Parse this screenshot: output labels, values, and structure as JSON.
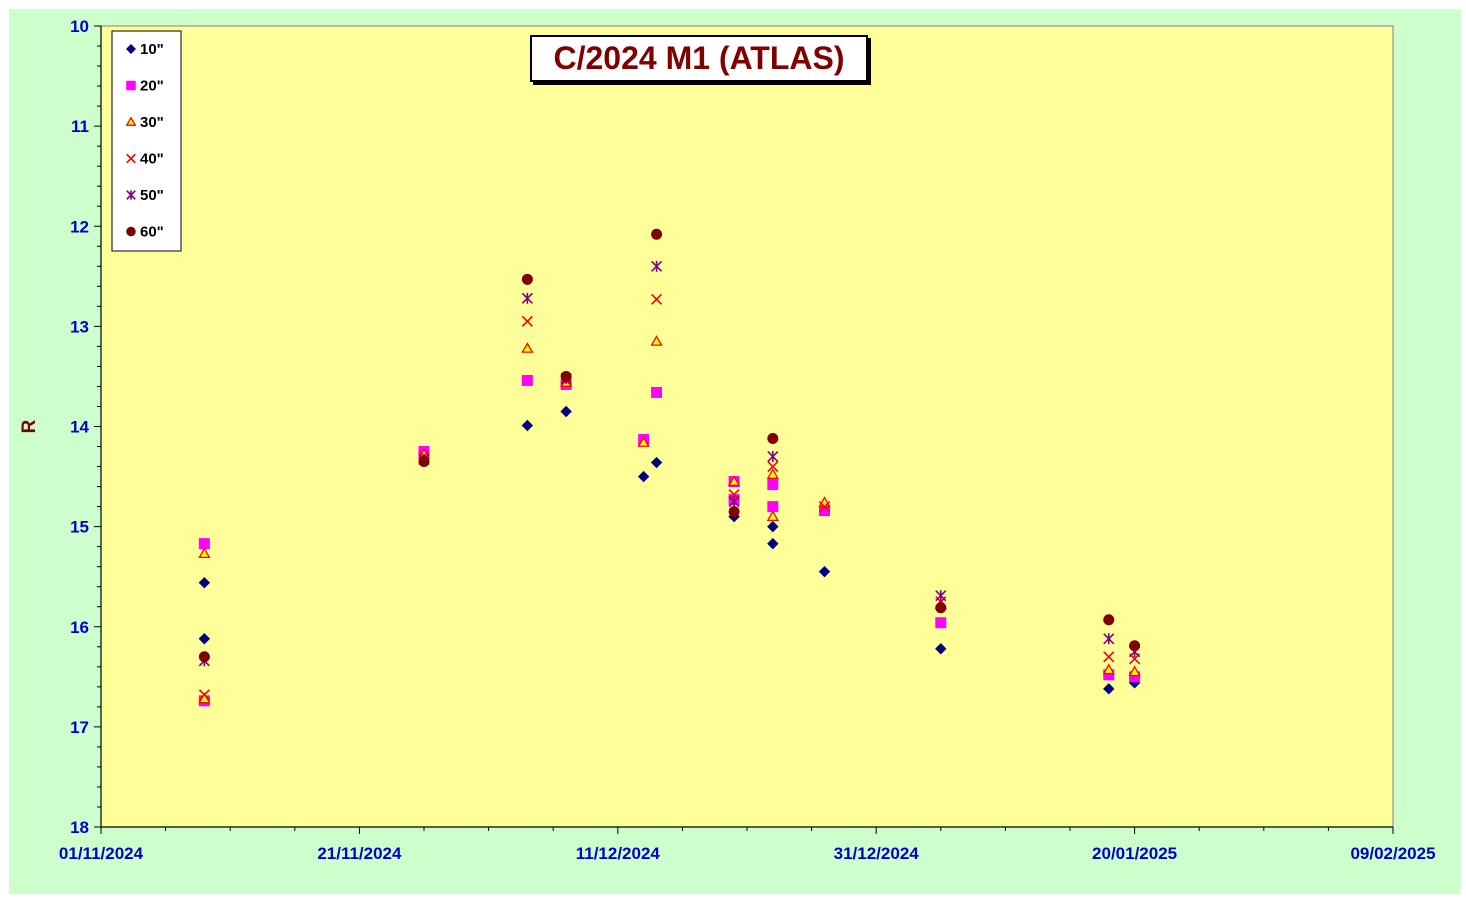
{
  "chart_data": {
    "type": "scatter",
    "title": "C/2024 M1 (ATLAS)",
    "ylabel": "R",
    "xlabel": "",
    "y_inverted": true,
    "ylim": [
      10,
      18
    ],
    "xlim": [
      "01/11/2024",
      "09/02/2025"
    ],
    "x_tick_labels": [
      "01/11/2024",
      "21/11/2024",
      "11/12/2024",
      "31/12/2024",
      "20/01/2025",
      "09/02/2025"
    ],
    "y_tick_labels": [
      "10",
      "11",
      "12",
      "13",
      "14",
      "15",
      "16",
      "17",
      "18"
    ],
    "legend_position": "top-left",
    "grid": false,
    "plot_background": "#ffff99",
    "chart_background": "#ccffcc",
    "series": [
      {
        "name": "10\"",
        "marker": "diamond",
        "color": "#000080",
        "points": [
          {
            "x": "09/11/2024",
            "y": 15.56
          },
          {
            "x": "09/11/2024",
            "y": 16.12
          },
          {
            "x": "26/11/2024",
            "y": 14.3
          },
          {
            "x": "04/12/2024",
            "y": 13.99
          },
          {
            "x": "07/12/2024",
            "y": 13.85
          },
          {
            "x": "13/12/2024",
            "y": 14.5
          },
          {
            "x": "14/12/2024",
            "y": 14.36
          },
          {
            "x": "20/12/2024",
            "y": 14.9
          },
          {
            "x": "23/12/2024",
            "y": 15.0
          },
          {
            "x": "23/12/2024",
            "y": 15.17
          },
          {
            "x": "27/12/2024",
            "y": 15.45
          },
          {
            "x": "05/01/2025",
            "y": 16.22
          },
          {
            "x": "18/01/2025",
            "y": 16.62
          },
          {
            "x": "20/01/2025",
            "y": 16.56
          }
        ]
      },
      {
        "name": "20\"",
        "marker": "square",
        "color": "#ff00ff",
        "points": [
          {
            "x": "09/11/2024",
            "y": 15.17
          },
          {
            "x": "09/11/2024",
            "y": 16.74
          },
          {
            "x": "26/11/2024",
            "y": 14.25
          },
          {
            "x": "04/12/2024",
            "y": 13.54
          },
          {
            "x": "07/12/2024",
            "y": 13.58
          },
          {
            "x": "13/12/2024",
            "y": 14.13
          },
          {
            "x": "14/12/2024",
            "y": 13.66
          },
          {
            "x": "20/12/2024",
            "y": 14.55
          },
          {
            "x": "20/12/2024",
            "y": 14.73
          },
          {
            "x": "23/12/2024",
            "y": 14.58
          },
          {
            "x": "23/12/2024",
            "y": 14.8
          },
          {
            "x": "27/12/2024",
            "y": 14.84
          },
          {
            "x": "05/01/2025",
            "y": 15.96
          },
          {
            "x": "18/01/2025",
            "y": 16.48
          },
          {
            "x": "20/01/2025",
            "y": 16.5
          }
        ]
      },
      {
        "name": "30\"",
        "marker": "triangle",
        "color": "#ff0000",
        "fill": "#ffff00",
        "points": [
          {
            "x": "09/11/2024",
            "y": 15.27
          },
          {
            "x": "09/11/2024",
            "y": 16.72
          },
          {
            "x": "26/11/2024",
            "y": 14.28
          },
          {
            "x": "04/12/2024",
            "y": 13.22
          },
          {
            "x": "07/12/2024",
            "y": 13.56
          },
          {
            "x": "13/12/2024",
            "y": 14.16
          },
          {
            "x": "14/12/2024",
            "y": 13.15
          },
          {
            "x": "20/12/2024",
            "y": 14.55
          },
          {
            "x": "23/12/2024",
            "y": 14.48
          },
          {
            "x": "23/12/2024",
            "y": 14.9
          },
          {
            "x": "27/12/2024",
            "y": 14.76
          },
          {
            "x": "05/01/2025",
            "y": 15.78
          },
          {
            "x": "18/01/2025",
            "y": 16.43
          },
          {
            "x": "20/01/2025",
            "y": 16.45
          }
        ]
      },
      {
        "name": "40\"",
        "marker": "x",
        "color": "#ff0000",
        "points": [
          {
            "x": "09/11/2024",
            "y": 16.68
          },
          {
            "x": "26/11/2024",
            "y": 14.3
          },
          {
            "x": "04/12/2024",
            "y": 12.95
          },
          {
            "x": "07/12/2024",
            "y": 13.54
          },
          {
            "x": "14/12/2024",
            "y": 12.73
          },
          {
            "x": "20/12/2024",
            "y": 14.68
          },
          {
            "x": "23/12/2024",
            "y": 14.4
          },
          {
            "x": "27/12/2024",
            "y": 14.8
          },
          {
            "x": "05/01/2025",
            "y": 15.75
          },
          {
            "x": "18/01/2025",
            "y": 16.3
          },
          {
            "x": "20/01/2025",
            "y": 16.32
          }
        ]
      },
      {
        "name": "50\"",
        "marker": "star",
        "color": "#800080",
        "points": [
          {
            "x": "09/11/2024",
            "y": 16.34
          },
          {
            "x": "26/11/2024",
            "y": 14.33
          },
          {
            "x": "04/12/2024",
            "y": 12.72
          },
          {
            "x": "07/12/2024",
            "y": 13.52
          },
          {
            "x": "14/12/2024",
            "y": 12.4
          },
          {
            "x": "20/12/2024",
            "y": 14.75
          },
          {
            "x": "23/12/2024",
            "y": 14.3
          },
          {
            "x": "05/01/2025",
            "y": 15.69
          },
          {
            "x": "18/01/2025",
            "y": 16.12
          },
          {
            "x": "20/01/2025",
            "y": 16.25
          }
        ]
      },
      {
        "name": "60\"",
        "marker": "circle",
        "color": "#800000",
        "points": [
          {
            "x": "09/11/2024",
            "y": 16.3
          },
          {
            "x": "26/11/2024",
            "y": 14.35
          },
          {
            "x": "04/12/2024",
            "y": 12.53
          },
          {
            "x": "07/12/2024",
            "y": 13.5
          },
          {
            "x": "14/12/2024",
            "y": 12.08
          },
          {
            "x": "20/12/2024",
            "y": 14.85
          },
          {
            "x": "23/12/2024",
            "y": 14.12
          },
          {
            "x": "05/01/2025",
            "y": 15.81
          },
          {
            "x": "18/01/2025",
            "y": 15.93
          },
          {
            "x": "20/01/2025",
            "y": 16.19
          }
        ]
      }
    ]
  }
}
